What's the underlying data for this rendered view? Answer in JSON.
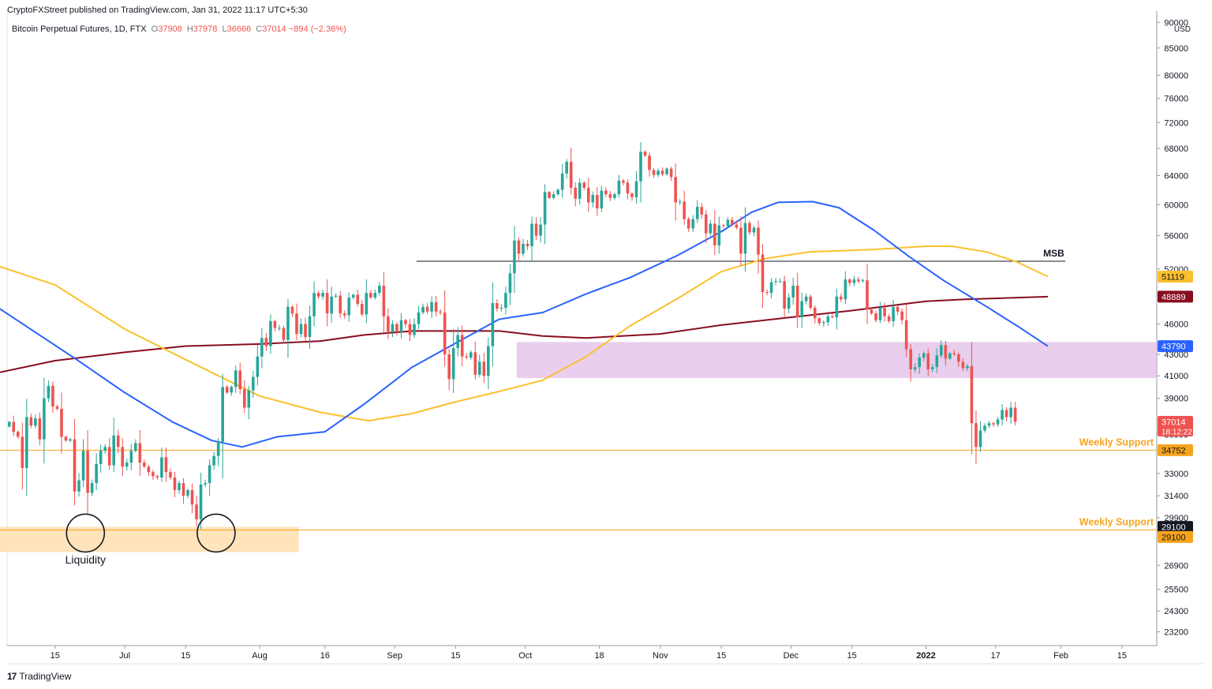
{
  "header": {
    "publisher": "CryptoFXStreet published on TradingView.com, Jan 31, 2022 11:17 UTC+5:30",
    "symbol": "Bitcoin Perpetual Futures, 1D, FTX",
    "o_label": "O",
    "o_value": "37908",
    "h_label": "H",
    "h_value": "37978",
    "l_label": "L",
    "l_value": "36666",
    "c_label": "C",
    "c_value": "37014",
    "change": "−894 (−2.36%)"
  },
  "footer": {
    "brand": "TradingView",
    "logo": "tradingview-logo"
  },
  "colors": {
    "up": "#26a69a",
    "down": "#ef5350",
    "ema50": "#2962ff",
    "ema100": "#fbc02d",
    "ema200": "#880e1f",
    "zone": "#e1bee7",
    "support": "#f7a41d",
    "liquidity": "#ffe0b2"
  },
  "chart_data": {
    "type": "candlestick",
    "title": "Bitcoin Perpetual Futures, 1D, FTX",
    "y_axis": {
      "unit": "USD",
      "scale": "log",
      "range": [
        22500,
        91000
      ],
      "ticks": [
        90000,
        85000,
        80000,
        76000,
        72000,
        68000,
        64000,
        60000,
        56000,
        52000,
        49000,
        46000,
        43000,
        41000,
        39000,
        36000,
        33000,
        31400,
        29900,
        26900,
        25500,
        24300,
        23200
      ]
    },
    "x_axis": {
      "start": "2021-06-04",
      "end": "2022-02-23",
      "ticks": [
        {
          "date": "2021-06-15",
          "label": "15"
        },
        {
          "date": "2021-07-01",
          "label": "Jul"
        },
        {
          "date": "2021-07-15",
          "label": "15"
        },
        {
          "date": "2021-08-01",
          "label": "Aug"
        },
        {
          "date": "2021-08-16",
          "label": "16"
        },
        {
          "date": "2021-09-01",
          "label": "Sep"
        },
        {
          "date": "2021-09-15",
          "label": "15"
        },
        {
          "date": "2021-10-01",
          "label": "Oct"
        },
        {
          "date": "2021-10-18",
          "label": "18"
        },
        {
          "date": "2021-11-01",
          "label": "Nov"
        },
        {
          "date": "2021-11-15",
          "label": "15"
        },
        {
          "date": "2021-12-01",
          "label": "Dec"
        },
        {
          "date": "2021-12-15",
          "label": "15"
        },
        {
          "date": "2022-01-01",
          "label": "2022"
        },
        {
          "date": "2022-01-17",
          "label": "17"
        },
        {
          "date": "2022-02-01",
          "label": "Feb"
        },
        {
          "date": "2022-02-15",
          "label": "15"
        }
      ]
    },
    "candles_start": "2021-06-04",
    "closes": [
      37000,
      36200,
      35800,
      33400,
      37400,
      36700,
      37300,
      35600,
      39000,
      40100,
      38300,
      38100,
      35800,
      35500,
      35600,
      31700,
      32500,
      34700,
      31600,
      32300,
      33700,
      34700,
      35000,
      33600,
      35900,
      35000,
      33500,
      33800,
      34700,
      35300,
      33800,
      33500,
      33100,
      32800,
      32700,
      34200,
      33100,
      32700,
      31800,
      32300,
      31400,
      31800,
      30800,
      29800,
      32200,
      32300,
      33600,
      34300,
      35400,
      40000,
      39500,
      40000,
      41500,
      39800,
      38200,
      39700,
      40900,
      42800,
      44600,
      43800,
      46300,
      45600,
      45600,
      44400,
      47800,
      47100,
      45000,
      46000,
      44700,
      46800,
      49300,
      48900,
      49300,
      47100,
      48900,
      49000,
      47100,
      46900,
      48800,
      49100,
      48100,
      47000,
      49300,
      48800,
      49300,
      50100,
      46800,
      45200,
      46000,
      45200,
      46400,
      46000,
      44900,
      46000,
      47200,
      47800,
      47300,
      48300,
      47300,
      47200,
      43000,
      40700,
      43600,
      44900,
      42800,
      42700,
      43200,
      41100,
      42300,
      41000,
      43800,
      48200,
      47600,
      47700,
      49300,
      51500,
      55400,
      53800,
      55000,
      54700,
      57500,
      56000,
      57400,
      61700,
      60900,
      61400,
      62000,
      64300,
      66000,
      62300,
      60800,
      63000,
      62300,
      60300,
      61300,
      59500,
      61900,
      61400,
      60900,
      61400,
      63300,
      63000,
      61500,
      61000,
      63200,
      67500,
      66900,
      64800,
      64100,
      64700,
      64200,
      65000,
      63800,
      60300,
      60400,
      58100,
      56900,
      58100,
      59700,
      58700,
      56300,
      57500,
      54800,
      57300,
      57200,
      58000,
      57400,
      57000,
      53800,
      57600,
      56400,
      57000,
      53700,
      49400,
      49300,
      50500,
      50600,
      50600,
      47600,
      48800,
      50100,
      46700,
      48400,
      48900,
      47700,
      46600,
      46100,
      46200,
      46800,
      46700,
      48900,
      48600,
      50800,
      50400,
      50800,
      50600,
      50700,
      47500,
      47100,
      46400,
      47700,
      46800,
      46300,
      47800,
      47300,
      46400,
      43500,
      41600,
      41800,
      42700,
      43100,
      41600,
      41800,
      42900,
      43900,
      42600,
      43100,
      43000,
      42300,
      41700,
      41900,
      36900,
      35000,
      36300,
      36700,
      36900,
      36800,
      37200,
      38000,
      37400,
      38200,
      37014
    ],
    "overlays": {
      "ema50": {
        "color": "#2962ff",
        "points": [
          [
            "2021-06-01",
            48000
          ],
          [
            "2021-06-20",
            42500
          ],
          [
            "2021-07-01",
            39500
          ],
          [
            "2021-07-12",
            37000
          ],
          [
            "2021-07-21",
            35500
          ],
          [
            "2021-07-28",
            35000
          ],
          [
            "2021-08-05",
            35800
          ],
          [
            "2021-08-16",
            36200
          ],
          [
            "2021-08-25",
            38500
          ],
          [
            "2021-09-05",
            41800
          ],
          [
            "2021-09-15",
            44100
          ],
          [
            "2021-09-25",
            46500
          ],
          [
            "2021-10-05",
            47200
          ],
          [
            "2021-10-15",
            49200
          ],
          [
            "2021-10-25",
            51000
          ],
          [
            "2021-11-05",
            53600
          ],
          [
            "2021-11-15",
            56500
          ],
          [
            "2021-11-22",
            59000
          ],
          [
            "2021-11-28",
            60300
          ],
          [
            "2021-12-06",
            60400
          ],
          [
            "2021-12-12",
            59600
          ],
          [
            "2021-12-20",
            56700
          ],
          [
            "2021-12-28",
            53500
          ],
          [
            "2022-01-05",
            50700
          ],
          [
            "2022-01-15",
            47800
          ],
          [
            "2022-01-22",
            45800
          ],
          [
            "2022-01-29",
            43790
          ]
        ]
      },
      "ema100": {
        "color": "#fbc02d",
        "points": [
          [
            "2021-06-01",
            52500
          ],
          [
            "2021-06-15",
            50200
          ],
          [
            "2021-07-01",
            45500
          ],
          [
            "2021-07-15",
            42500
          ],
          [
            "2021-08-01",
            39200
          ],
          [
            "2021-08-15",
            37800
          ],
          [
            "2021-08-26",
            37100
          ],
          [
            "2021-09-05",
            37700
          ],
          [
            "2021-09-15",
            38700
          ],
          [
            "2021-09-25",
            39600
          ],
          [
            "2021-10-05",
            40600
          ],
          [
            "2021-10-15",
            42800
          ],
          [
            "2021-10-25",
            45800
          ],
          [
            "2021-11-05",
            48700
          ],
          [
            "2021-11-15",
            51700
          ],
          [
            "2021-11-25",
            53200
          ],
          [
            "2021-12-05",
            54000
          ],
          [
            "2021-12-20",
            54300
          ],
          [
            "2022-01-01",
            54700
          ],
          [
            "2022-01-07",
            54700
          ],
          [
            "2022-01-15",
            54000
          ],
          [
            "2022-01-22",
            52800
          ],
          [
            "2022-01-29",
            51119
          ]
        ]
      },
      "ema200": {
        "color": "#880e1f",
        "points": [
          [
            "2021-06-01",
            41200
          ],
          [
            "2021-06-15",
            42400
          ],
          [
            "2021-07-01",
            43200
          ],
          [
            "2021-07-15",
            43800
          ],
          [
            "2021-08-01",
            44000
          ],
          [
            "2021-08-15",
            44300
          ],
          [
            "2021-08-25",
            44900
          ],
          [
            "2021-09-05",
            45300
          ],
          [
            "2021-09-15",
            45300
          ],
          [
            "2021-09-25",
            45300
          ],
          [
            "2021-10-05",
            44800
          ],
          [
            "2021-10-15",
            44600
          ],
          [
            "2021-11-01",
            45000
          ],
          [
            "2021-11-15",
            45900
          ],
          [
            "2021-12-01",
            46700
          ],
          [
            "2021-12-15",
            47400
          ],
          [
            "2022-01-01",
            48400
          ],
          [
            "2022-01-10",
            48600
          ],
          [
            "2022-01-29",
            48889
          ]
        ]
      }
    },
    "levels": [
      {
        "label": "MSB",
        "price": 52900,
        "from": "2021-09-06",
        "to": "2022-02-02"
      },
      {
        "label": "Weekly Support",
        "price": 34752,
        "from": "2021-06-01",
        "to": "2022-02-23"
      },
      {
        "label": "Weekly Support",
        "price": 29100,
        "from": "2021-06-01",
        "to": "2022-02-23"
      }
    ],
    "zones": [
      {
        "name": "demand",
        "from": "2021-09-29",
        "to": "2022-02-23",
        "low": 40800,
        "high": 44200
      },
      {
        "name": "liquidity",
        "from": "2021-06-01",
        "to": "2021-08-10",
        "low": 27700,
        "high": 29300
      }
    ],
    "annotations": [
      {
        "text": "Liquidity",
        "date": "2021-06-22",
        "price": 27000
      },
      {
        "kind": "circle",
        "date": "2021-06-22",
        "price": 28900
      },
      {
        "kind": "circle",
        "date": "2021-07-22",
        "price": 28900
      }
    ],
    "price_labels": [
      {
        "text": "51119",
        "price": 51119,
        "bg": "#fbc02d",
        "fg": "#131722"
      },
      {
        "text": "48889",
        "price": 48889,
        "bg": "#880e1f",
        "fg": "#ffffff"
      },
      {
        "text": "43790",
        "price": 43790,
        "bg": "#2962ff",
        "fg": "#ffffff"
      },
      {
        "text": "37014",
        "sub": "18:12:22",
        "price": 37014,
        "bg": "#ef5350",
        "fg": "#ffffff"
      },
      {
        "text": "34752",
        "price": 34752,
        "bg": "#f7a41d",
        "fg": "#131722"
      },
      {
        "text": "29100",
        "price": 29300,
        "bg": "#131722",
        "fg": "#ffffff"
      },
      {
        "text": "29100",
        "price": 28650,
        "bg": "#f7a41d",
        "fg": "#131722"
      }
    ]
  }
}
